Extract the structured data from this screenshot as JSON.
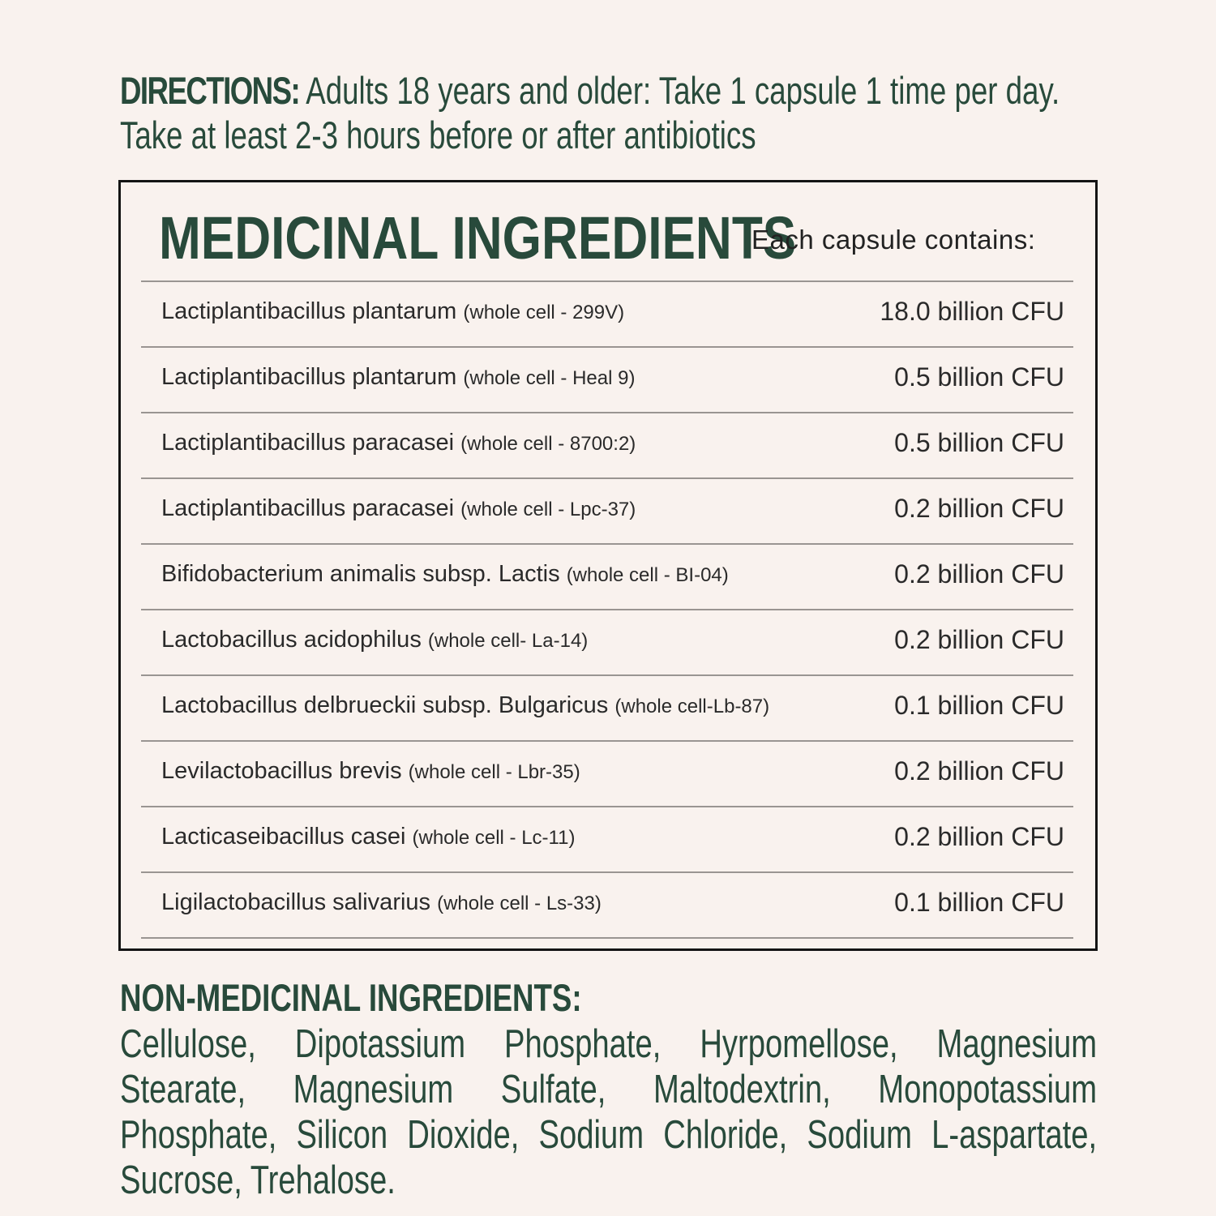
{
  "directions": {
    "label": "DIRECTIONS:",
    "line1": " Adults 18 years and older: Take 1 capsule 1 time per day.",
    "line2": "Take at least 2-3 hours before or after antibiotics"
  },
  "medicinal": {
    "title": "MEDICINAL INGREDIENTS",
    "subtitle": "Each capsule contains:",
    "rows": [
      {
        "name": "Lactiplantibacillus plantarum",
        "strain": "(whole cell - 299V)",
        "amount": "18.0 billion CFU"
      },
      {
        "name": "Lactiplantibacillus plantarum",
        "strain": "(whole cell - Heal 9)",
        "amount": "0.5 billion CFU"
      },
      {
        "name": "Lactiplantibacillus paracasei",
        "strain": "(whole cell - 8700:2)",
        "amount": "0.5 billion CFU"
      },
      {
        "name": "Lactiplantibacillus paracasei",
        "strain": "(whole cell - Lpc-37)",
        "amount": "0.2 billion CFU"
      },
      {
        "name": "Bifidobacterium animalis subsp. Lactis",
        "strain": "(whole cell - BI-04)",
        "amount": "0.2 billion CFU"
      },
      {
        "name": "Lactobacillus acidophilus",
        "strain": "(whole cell- La-14)",
        "amount": "0.2 billion CFU"
      },
      {
        "name": "Lactobacillus delbrueckii subsp. Bulgaricus",
        "strain": "(whole cell-Lb-87)",
        "amount": "0.1 billion CFU"
      },
      {
        "name": "Levilactobacillus brevis",
        "strain": "(whole cell - Lbr-35)",
        "amount": "0.2 billion CFU"
      },
      {
        "name": "Lacticaseibacillus casei",
        "strain": "(whole cell - Lc-11)",
        "amount": "0.2 billion CFU"
      },
      {
        "name": "Ligilactobacillus salivarius",
        "strain": "(whole cell - Ls-33)",
        "amount": "0.1 billion CFU"
      }
    ]
  },
  "non_medicinal": {
    "title": "NON-MEDICINAL INGREDIENTS:",
    "text": "Cellulose, Dipotassium Phosphate, Hyrpomellose, Magnesium Stearate, Magnesium Sulfate, Maltodextrin, Monopotassium Phosphate, Silicon Dioxide, Sodium Chloride, Sodium L-aspartate, Sucrose, Trehalose."
  }
}
